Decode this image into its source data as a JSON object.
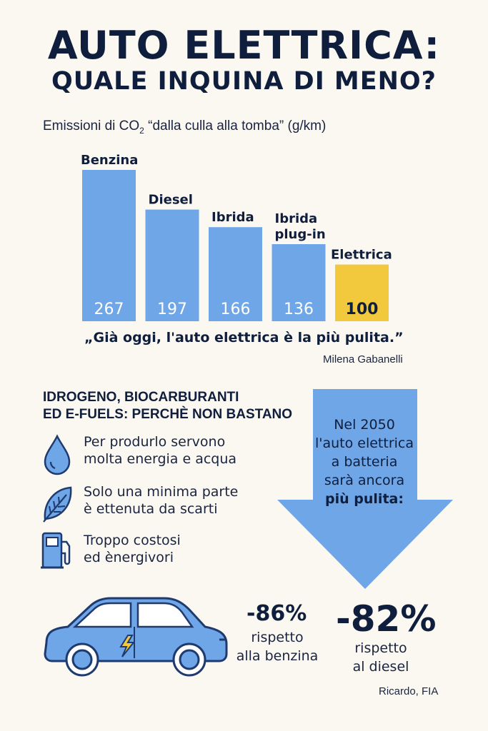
{
  "header": {
    "title_line1": "AUTO ELETTRICA:",
    "title_line2": "QUALE INQUINA DI MENO?"
  },
  "chart_data": {
    "type": "bar",
    "title": "Emissioni di CO₂ “dalla culla alla tomba” (g/km)",
    "title_prefix": "Emissioni di CO",
    "title_sub": "2",
    "title_suffix": " “dalla culla alla tomba” (g/km)",
    "categories": [
      [
        "Benzina"
      ],
      [
        "Diesel"
      ],
      [
        "Ibrida"
      ],
      [
        "Ibrida",
        "plug-in"
      ],
      [
        "Elettrica"
      ]
    ],
    "values": [
      267,
      197,
      166,
      136,
      100
    ],
    "colors": [
      "#6fa6e8",
      "#6fa6e8",
      "#6fa6e8",
      "#6fa6e8",
      "#f2c83c"
    ],
    "ylim": [
      0,
      267
    ],
    "grid": false
  },
  "quote": {
    "text": "„Già oggi, l'auto elettrica è la più pulita.”",
    "author": "Milena Gabanelli"
  },
  "alternatives": {
    "title_line1": "IDROGENO, BIOCARBURANTI",
    "title_line2": "ED E-FUELS: PERCHÈ NON BASTANO",
    "items": [
      {
        "icon": "water-drop-icon",
        "line1": "Per produrlo servono",
        "line2": "molta energia e acqua"
      },
      {
        "icon": "leaf-icon",
        "line1": "Solo una minima parte",
        "line2": "è ettenuta da scarti"
      },
      {
        "icon": "fuel-pump-icon",
        "line1": "Troppo costosi",
        "line2": "ed ènergivori"
      }
    ]
  },
  "forecast": {
    "lines": [
      "Nel 2050",
      "l'auto elettrica",
      "a batteria",
      "sarà ancora",
      "più pulita:"
    ],
    "arrow_color": "#6fa6e8",
    "stat1": {
      "value": "-86%",
      "line1": "rispetto",
      "line2": "alla benzina"
    },
    "stat2": {
      "value": "-82%",
      "line1": "rispetto",
      "line2": "al diesel"
    },
    "source": "Ricardo, FIA"
  },
  "colors": {
    "background": "#fbf8f2",
    "text": "#0f1e3c",
    "bar_blue": "#6fa6e8",
    "bar_yellow": "#f2c83c",
    "icon_stroke": "#1e3a6e"
  }
}
